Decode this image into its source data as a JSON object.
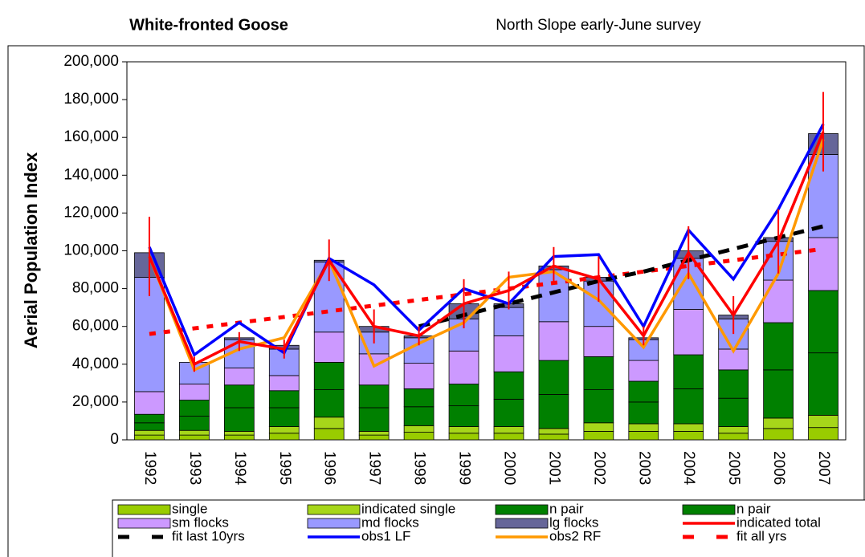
{
  "chart_data": {
    "type": "bar",
    "title": "White-fronted Goose",
    "subtitle": "North Slope early-June survey",
    "y_label": "Aerial Population Index",
    "categories": [
      "1992",
      "1993",
      "1994",
      "1995",
      "1996",
      "1997",
      "1998",
      "1999",
      "2000",
      "2001",
      "2002",
      "2003",
      "2004",
      "2005",
      "2006",
      "2007"
    ],
    "ylim": [
      0,
      200000
    ],
    "yticks": [
      {
        "value": 0,
        "label": "0"
      },
      {
        "value": 20000,
        "label": "20,000"
      },
      {
        "value": 40000,
        "label": "40,000"
      },
      {
        "value": 60000,
        "label": "60,000"
      },
      {
        "value": 80000,
        "label": "80,000"
      },
      {
        "value": 100000,
        "label": "100,000"
      },
      {
        "value": 120000,
        "label": "120,000"
      },
      {
        "value": 140000,
        "label": "140,000"
      },
      {
        "value": 160000,
        "label": "160,000"
      },
      {
        "value": 180000,
        "label": "180,000"
      },
      {
        "value": 200000,
        "label": "200,000"
      }
    ],
    "legend_position": "bottom",
    "series": [
      {
        "name": "single",
        "style": "bar",
        "color": "#99cc00",
        "values": [
          2500,
          2500,
          2500,
          3500,
          6000,
          2500,
          4000,
          3500,
          3500,
          3000,
          4500,
          4500,
          4500,
          3500,
          6000,
          6500
        ]
      },
      {
        "name": "indicated single",
        "style": "bar",
        "color": "#a6d61a",
        "values": [
          2500,
          2500,
          2000,
          3500,
          6000,
          2000,
          3500,
          3500,
          3500,
          3000,
          4500,
          4000,
          4000,
          3500,
          5500,
          6500
        ]
      },
      {
        "name": "n pair",
        "style": "bar",
        "color": "#008000",
        "values": [
          4000,
          7500,
          12500,
          10000,
          14500,
          12500,
          10000,
          11000,
          14500,
          18000,
          17500,
          11500,
          18500,
          15000,
          25500,
          33000
        ]
      },
      {
        "name": "n pair",
        "style": "bar",
        "color": "#008000",
        "values": [
          4500,
          8500,
          12000,
          9000,
          14500,
          12000,
          9500,
          11500,
          14500,
          18000,
          17500,
          11000,
          18000,
          15000,
          25000,
          33000
        ]
      },
      {
        "name": "sm flocks",
        "style": "bar",
        "color": "#cc99ff",
        "values": [
          12000,
          8500,
          9000,
          8000,
          16000,
          16500,
          13500,
          17500,
          19000,
          20500,
          16000,
          11000,
          24000,
          11000,
          22500,
          28000
        ]
      },
      {
        "name": "md flocks",
        "style": "bar",
        "color": "#9999ff",
        "values": [
          60500,
          11500,
          15000,
          14000,
          37000,
          11500,
          13500,
          17000,
          15000,
          27500,
          24000,
          11000,
          27000,
          16000,
          20500,
          44000
        ]
      },
      {
        "name": "lg flocks",
        "style": "bar",
        "color": "#666699",
        "values": [
          13000,
          0,
          1000,
          2000,
          1000,
          3000,
          1000,
          8000,
          2000,
          2000,
          2000,
          1000,
          4000,
          2000,
          2000,
          11000
        ]
      },
      {
        "name": "indicated total",
        "style": "line",
        "color": "#ff0000",
        "values": [
          97000,
          40000,
          52000,
          48000,
          95000,
          60000,
          55000,
          72000,
          79000,
          92000,
          85000,
          55000,
          99000,
          66000,
          105000,
          163000
        ],
        "errors": [
          21000,
          4000,
          5000,
          5000,
          11000,
          9000,
          5000,
          13000,
          10000,
          10000,
          12000,
          5000,
          14000,
          10000,
          17000,
          21000
        ]
      },
      {
        "name": "fit last 10yrs",
        "style": "dashed",
        "color": "#000000",
        "values": [
          null,
          null,
          null,
          null,
          null,
          null,
          60000,
          66000,
          72000,
          78000,
          84000,
          89000,
          95000,
          101000,
          107000,
          113000
        ]
      },
      {
        "name": "obs1 LF",
        "style": "line",
        "color": "#0000ff",
        "values": [
          102000,
          45000,
          62000,
          46000,
          96000,
          82000,
          58000,
          80000,
          72000,
          97000,
          98000,
          60000,
          111000,
          85000,
          122000,
          167000
        ]
      },
      {
        "name": "obs2 RF",
        "style": "line",
        "color": "#ff9900",
        "values": [
          97000,
          37000,
          48000,
          54000,
          95000,
          39000,
          51000,
          62000,
          86000,
          89000,
          74000,
          49000,
          88000,
          47000,
          88000,
          159000
        ]
      },
      {
        "name": "fit all yrs",
        "style": "dashed",
        "color": "#ff0000",
        "values": [
          56000,
          59000,
          62000,
          65000,
          68000,
          71000,
          74000,
          77000,
          80000,
          83000,
          86000,
          89000,
          92000,
          95000,
          98000,
          101000
        ]
      }
    ]
  }
}
